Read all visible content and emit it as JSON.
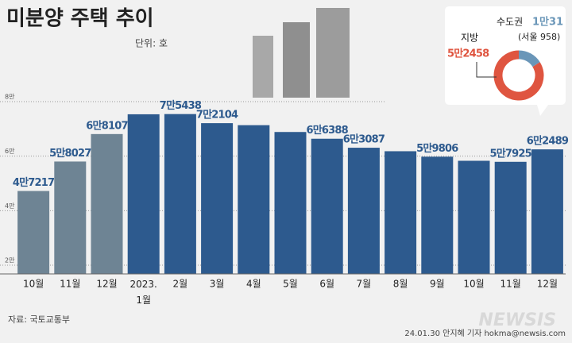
{
  "chart_data": [
    {
      "type": "bar",
      "title": "미분양 주택 추이",
      "unit": "단위: 호",
      "source": "자료: 국토교통부",
      "credit": "24.01.30 안지혜 기자 hokma@newsis.com",
      "watermark": "NEWSIS",
      "categories": [
        "10월",
        "11월",
        "12월",
        "2023.\n1월",
        "2월",
        "3월",
        "4월",
        "5월",
        "6월",
        "7월",
        "8월",
        "9월",
        "10월",
        "11월",
        "12월"
      ],
      "values": [
        47217,
        58027,
        68107,
        75359,
        75438,
        72104,
        71365,
        68865,
        66388,
        63087,
        61811,
        59806,
        58299,
        57925,
        62489
      ],
      "value_labels": [
        "4만7217",
        "5만8027",
        "6만8107",
        null,
        "7만5438",
        "7만2104",
        null,
        null,
        "6만6388",
        "6만3087",
        null,
        "5만9806",
        null,
        "5만7925",
        "6만2489"
      ],
      "colors": [
        "#6e8494",
        "#6e8494",
        "#6e8494",
        "#2d5a8e",
        "#2d5a8e",
        "#2d5a8e",
        "#2d5a8e",
        "#2d5a8e",
        "#2d5a8e",
        "#2d5a8e",
        "#2d5a8e",
        "#2d5a8e",
        "#2d5a8e",
        "#2d5a8e",
        "#2d5a8e"
      ],
      "ylim": [
        16800,
        80000
      ],
      "yticks": [
        {
          "value": 20000,
          "label": "2만"
        },
        {
          "value": 40000,
          "label": "4만"
        },
        {
          "value": 60000,
          "label": "6만"
        },
        {
          "value": 80000,
          "label": "8만"
        }
      ],
      "grid": true
    },
    {
      "type": "pie",
      "categories": [
        "수도권",
        "지방"
      ],
      "values": [
        10031,
        52458
      ],
      "value_labels": [
        "1만31",
        "5만2458"
      ],
      "annotation": "(서울 958)",
      "colors": [
        "#6a96b8",
        "#df5540"
      ]
    }
  ]
}
